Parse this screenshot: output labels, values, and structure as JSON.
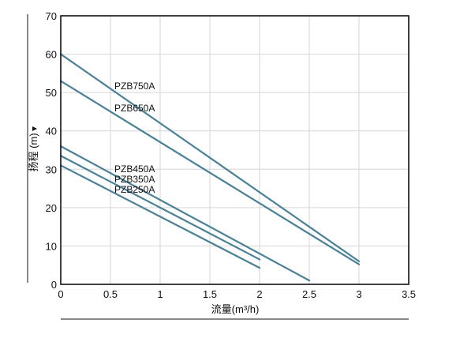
{
  "chart_data": {
    "type": "line",
    "title": "",
    "xlabel": "流量(m³/h)",
    "ylabel": "扬程 (m)",
    "xlim": [
      0,
      3.5
    ],
    "ylim": [
      0,
      70
    ],
    "xticks": [
      "0",
      "0.5",
      "1",
      "1.5",
      "2",
      "2.5",
      "3",
      "3.5"
    ],
    "yticks": [
      "0",
      "10",
      "20",
      "30",
      "40",
      "50",
      "60",
      "70"
    ],
    "grid": true,
    "series": [
      {
        "name": "PZB750A",
        "x": [
          0,
          3
        ],
        "y": [
          60,
          6
        ]
      },
      {
        "name": "PZB650A",
        "x": [
          0,
          3
        ],
        "y": [
          53,
          5.2
        ]
      },
      {
        "name": "PZB450A",
        "x": [
          0,
          2.5
        ],
        "y": [
          36,
          1
        ]
      },
      {
        "name": "PZB350A",
        "x": [
          0,
          2
        ],
        "y": [
          33.5,
          6.5
        ]
      },
      {
        "name": "PZB250A",
        "x": [
          0,
          2
        ],
        "y": [
          31,
          4.3
        ]
      }
    ],
    "colors": {
      "line": "#4a8196",
      "grid": "#d6d6d6",
      "axis": "#111111"
    }
  }
}
